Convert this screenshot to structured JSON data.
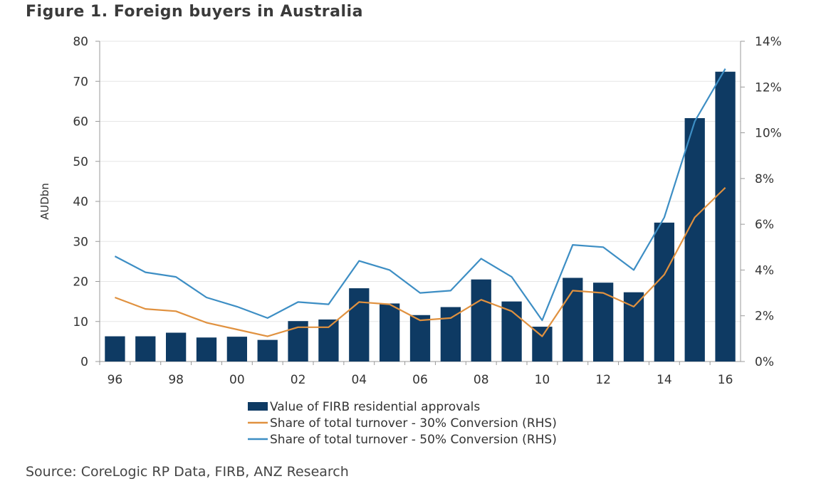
{
  "header": {
    "title": "Figure 1. Foreign buyers in Australia"
  },
  "footer": {
    "source": "Source: CoreLogic RP Data, FIRB, ANZ Research"
  },
  "chart_data": {
    "type": "bar",
    "title": "Figure 1. Foreign buyers in Australia",
    "xlabel": "",
    "ylabel": "AUDbn",
    "ylabel_right": "",
    "ylim": [
      0,
      80
    ],
    "ylim_right": [
      0,
      14
    ],
    "yticks": [
      "0",
      "10",
      "20",
      "30",
      "40",
      "50",
      "60",
      "70",
      "80"
    ],
    "yticks_right": [
      "0%",
      "2%",
      "4%",
      "6%",
      "8%",
      "10%",
      "12%",
      "14%"
    ],
    "categories": [
      "96",
      "97",
      "98",
      "99",
      "00",
      "01",
      "02",
      "03",
      "04",
      "05",
      "06",
      "07",
      "08",
      "09",
      "10",
      "11",
      "12",
      "13",
      "14",
      "15",
      "16"
    ],
    "xtick_labels": [
      "96",
      "",
      "98",
      "",
      "00",
      "",
      "02",
      "",
      "04",
      "",
      "06",
      "",
      "08",
      "",
      "10",
      "",
      "12",
      "",
      "14",
      "",
      "16"
    ],
    "grid": true,
    "legend_position": "bottom",
    "series": [
      {
        "name": "Value of FIRB residential approvals",
        "type": "bar",
        "axis": "left",
        "color": "#0e3a63",
        "values": [
          6.3,
          6.3,
          7.2,
          6.0,
          6.2,
          5.4,
          10.1,
          10.5,
          18.3,
          14.5,
          11.6,
          13.6,
          20.5,
          15.0,
          8.7,
          20.9,
          19.7,
          17.3,
          34.7,
          60.8,
          72.4
        ]
      },
      {
        "name": "Share of total turnover - 30% Conversion (RHS)",
        "type": "line",
        "axis": "right",
        "color": "#e0913f",
        "values": [
          2.8,
          2.3,
          2.2,
          1.7,
          1.4,
          1.1,
          1.5,
          1.5,
          2.6,
          2.5,
          1.8,
          1.9,
          2.7,
          2.2,
          1.1,
          3.1,
          3.0,
          2.4,
          3.8,
          6.3,
          7.6
        ]
      },
      {
        "name": "Share of total turnover - 50% Conversion (RHS)",
        "type": "line",
        "axis": "right",
        "color": "#3d8ec4",
        "values": [
          4.6,
          3.9,
          3.7,
          2.8,
          2.4,
          1.9,
          2.6,
          2.5,
          4.4,
          4.0,
          3.0,
          3.1,
          4.5,
          3.7,
          1.8,
          5.1,
          5.0,
          4.0,
          6.3,
          10.5,
          12.8
        ]
      }
    ]
  }
}
